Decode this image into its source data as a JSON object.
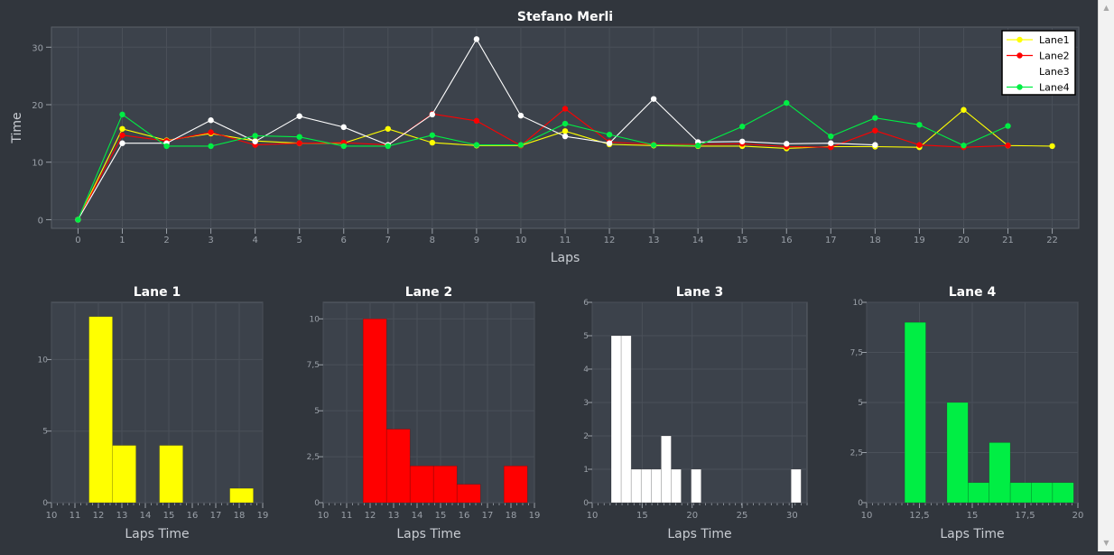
{
  "colors": {
    "background": "#31363d",
    "plot_background": "#3c424b",
    "grid": "#4a5059",
    "axis_text": "#9aa0a8",
    "title_text": "#ffffff",
    "lane1": "#ffff00",
    "lane2": "#ff0000",
    "lane3": "#ffffff",
    "lane4": "#00ee44"
  },
  "chart_data": [
    {
      "type": "line",
      "title": "Stefano Merli",
      "xlabel": "Laps",
      "ylabel": "Time",
      "xlim": [
        -0.6,
        22.6
      ],
      "ylim": [
        -1.5,
        33.5
      ],
      "xticks": [
        0,
        1,
        2,
        3,
        4,
        5,
        6,
        7,
        8,
        9,
        10,
        11,
        12,
        13,
        14,
        15,
        16,
        17,
        18,
        19,
        20,
        21,
        22
      ],
      "yticks": [
        0,
        10,
        20,
        30
      ],
      "grid": true,
      "legend_position": "top-right",
      "series": [
        {
          "name": "Lane1",
          "color": "#ffff00",
          "x": [
            0,
            1,
            2,
            3,
            4,
            5,
            6,
            7,
            8,
            9,
            10,
            11,
            12,
            13,
            14,
            15,
            16,
            17,
            18,
            19,
            20,
            21,
            22
          ],
          "y": [
            0,
            15.8,
            13.8,
            15,
            13.7,
            13.3,
            13.3,
            15.8,
            13.4,
            12.9,
            12.9,
            15.4,
            13.1,
            12.9,
            12.8,
            12.8,
            12.4,
            12.7,
            12.7,
            12.6,
            19.1,
            12.9,
            12.8
          ]
        },
        {
          "name": "Lane2",
          "color": "#ff0000",
          "x": [
            0,
            1,
            2,
            3,
            4,
            5,
            6,
            7,
            8,
            9,
            10,
            11,
            12,
            13,
            14,
            15,
            16,
            17,
            18,
            19,
            20,
            21
          ],
          "y": [
            0,
            14.7,
            13.7,
            15.2,
            13,
            13.3,
            13.4,
            13,
            18.4,
            17.2,
            12.9,
            19.3,
            13.5,
            13.1,
            13.1,
            13.2,
            12.7,
            12.6,
            15.5,
            13,
            12.6,
            12.9
          ]
        },
        {
          "name": "Lane3",
          "color": "#ffffff",
          "x": [
            0,
            1,
            2,
            3,
            4,
            5,
            6,
            7,
            8,
            9,
            10,
            11,
            12,
            13,
            14,
            15,
            16,
            17,
            18
          ],
          "y": [
            0,
            13.3,
            13.3,
            17.3,
            13.6,
            18,
            16.1,
            13,
            18.3,
            31.4,
            18.1,
            14.5,
            13.3,
            21,
            13.5,
            13.6,
            13.2,
            13.3,
            13
          ]
        },
        {
          "name": "Lane4",
          "color": "#00ee44",
          "x": [
            0,
            1,
            2,
            3,
            4,
            5,
            6,
            7,
            8,
            9,
            10,
            11,
            12,
            13,
            14,
            15,
            16,
            17,
            18,
            19,
            20,
            21
          ],
          "y": [
            0,
            18.3,
            12.8,
            12.8,
            14.6,
            14.4,
            12.8,
            12.8,
            14.7,
            13,
            13,
            16.7,
            14.8,
            13,
            12.9,
            16.2,
            20.3,
            14.5,
            17.7,
            16.5,
            12.9,
            16.3
          ]
        }
      ]
    },
    {
      "type": "bar",
      "title": "Lane 1",
      "xlabel": "Laps Time",
      "color": "#ffff00",
      "xlim": [
        10,
        19
      ],
      "ylim": [
        0,
        14
      ],
      "xticks": [
        10,
        11,
        12,
        13,
        14,
        15,
        16,
        17,
        18,
        19
      ],
      "xtick_labels": [
        "10",
        "11",
        "12",
        "13",
        "14",
        "15",
        "16",
        "17",
        "18",
        "19"
      ],
      "yticks": [
        0,
        5,
        10
      ],
      "ytick_labels": [
        "0",
        "5",
        "10"
      ],
      "bins": [
        {
          "x0": 11.6,
          "x1": 12.6,
          "value": 13
        },
        {
          "x0": 12.6,
          "x1": 13.6,
          "value": 4
        },
        {
          "x0": 14.6,
          "x1": 15.6,
          "value": 4
        },
        {
          "x0": 17.6,
          "x1": 18.6,
          "value": 1
        }
      ]
    },
    {
      "type": "bar",
      "title": "Lane 2",
      "xlabel": "Laps Time",
      "color": "#ff0000",
      "xlim": [
        10,
        19
      ],
      "ylim": [
        0,
        10.9
      ],
      "xticks": [
        10,
        11,
        12,
        13,
        14,
        15,
        16,
        17,
        18,
        19
      ],
      "xtick_labels": [
        "10",
        "11",
        "12",
        "13",
        "14",
        "15",
        "16",
        "17",
        "18",
        "19"
      ],
      "yticks": [
        0,
        2.5,
        5,
        7.5,
        10
      ],
      "ytick_labels": [
        "0",
        "2,5",
        "5",
        "7,5",
        "10"
      ],
      "bins": [
        {
          "x0": 11.7,
          "x1": 12.7,
          "value": 10
        },
        {
          "x0": 12.7,
          "x1": 13.7,
          "value": 4
        },
        {
          "x0": 13.7,
          "x1": 14.7,
          "value": 2
        },
        {
          "x0": 14.7,
          "x1": 15.7,
          "value": 2
        },
        {
          "x0": 15.7,
          "x1": 16.7,
          "value": 1
        },
        {
          "x0": 17.7,
          "x1": 18.7,
          "value": 2
        }
      ]
    },
    {
      "type": "bar",
      "title": "Lane 3",
      "xlabel": "Laps Time",
      "color": "#ffffff",
      "xlim": [
        10,
        31.5
      ],
      "ylim": [
        0,
        6
      ],
      "xticks": [
        10,
        15,
        20,
        25,
        30
      ],
      "xtick_labels": [
        "10",
        "15",
        "20",
        "25",
        "30"
      ],
      "yticks": [
        0,
        1,
        2,
        3,
        4,
        5,
        6
      ],
      "ytick_labels": [
        "0",
        "1",
        "2",
        "3",
        "4",
        "5",
        "6"
      ],
      "bins": [
        {
          "x0": 11.9,
          "x1": 12.9,
          "value": 5
        },
        {
          "x0": 12.9,
          "x1": 13.9,
          "value": 5
        },
        {
          "x0": 13.9,
          "x1": 14.9,
          "value": 1
        },
        {
          "x0": 14.9,
          "x1": 15.9,
          "value": 1
        },
        {
          "x0": 15.9,
          "x1": 16.9,
          "value": 1
        },
        {
          "x0": 16.9,
          "x1": 17.9,
          "value": 2
        },
        {
          "x0": 17.9,
          "x1": 18.9,
          "value": 1
        },
        {
          "x0": 19.9,
          "x1": 20.9,
          "value": 1
        },
        {
          "x0": 29.9,
          "x1": 30.9,
          "value": 1
        }
      ]
    },
    {
      "type": "bar",
      "title": "Lane 4",
      "xlabel": "Laps Time",
      "color": "#00ee44",
      "xlim": [
        10,
        20
      ],
      "ylim": [
        0,
        10
      ],
      "xticks": [
        10,
        12.5,
        15,
        17.5,
        20
      ],
      "xtick_labels": [
        "10",
        "12,5",
        "15",
        "17,5",
        "20"
      ],
      "yticks": [
        0,
        2.5,
        5,
        7.5,
        10
      ],
      "ytick_labels": [
        "0",
        "2,5",
        "5",
        "7,5",
        "10"
      ],
      "bins": [
        {
          "x0": 11.8,
          "x1": 12.8,
          "value": 9
        },
        {
          "x0": 13.8,
          "x1": 14.8,
          "value": 5
        },
        {
          "x0": 14.8,
          "x1": 15.8,
          "value": 1
        },
        {
          "x0": 15.8,
          "x1": 16.8,
          "value": 3
        },
        {
          "x0": 16.8,
          "x1": 17.8,
          "value": 1
        },
        {
          "x0": 17.8,
          "x1": 18.8,
          "value": 1
        },
        {
          "x0": 18.8,
          "x1": 19.8,
          "value": 1
        }
      ]
    }
  ]
}
